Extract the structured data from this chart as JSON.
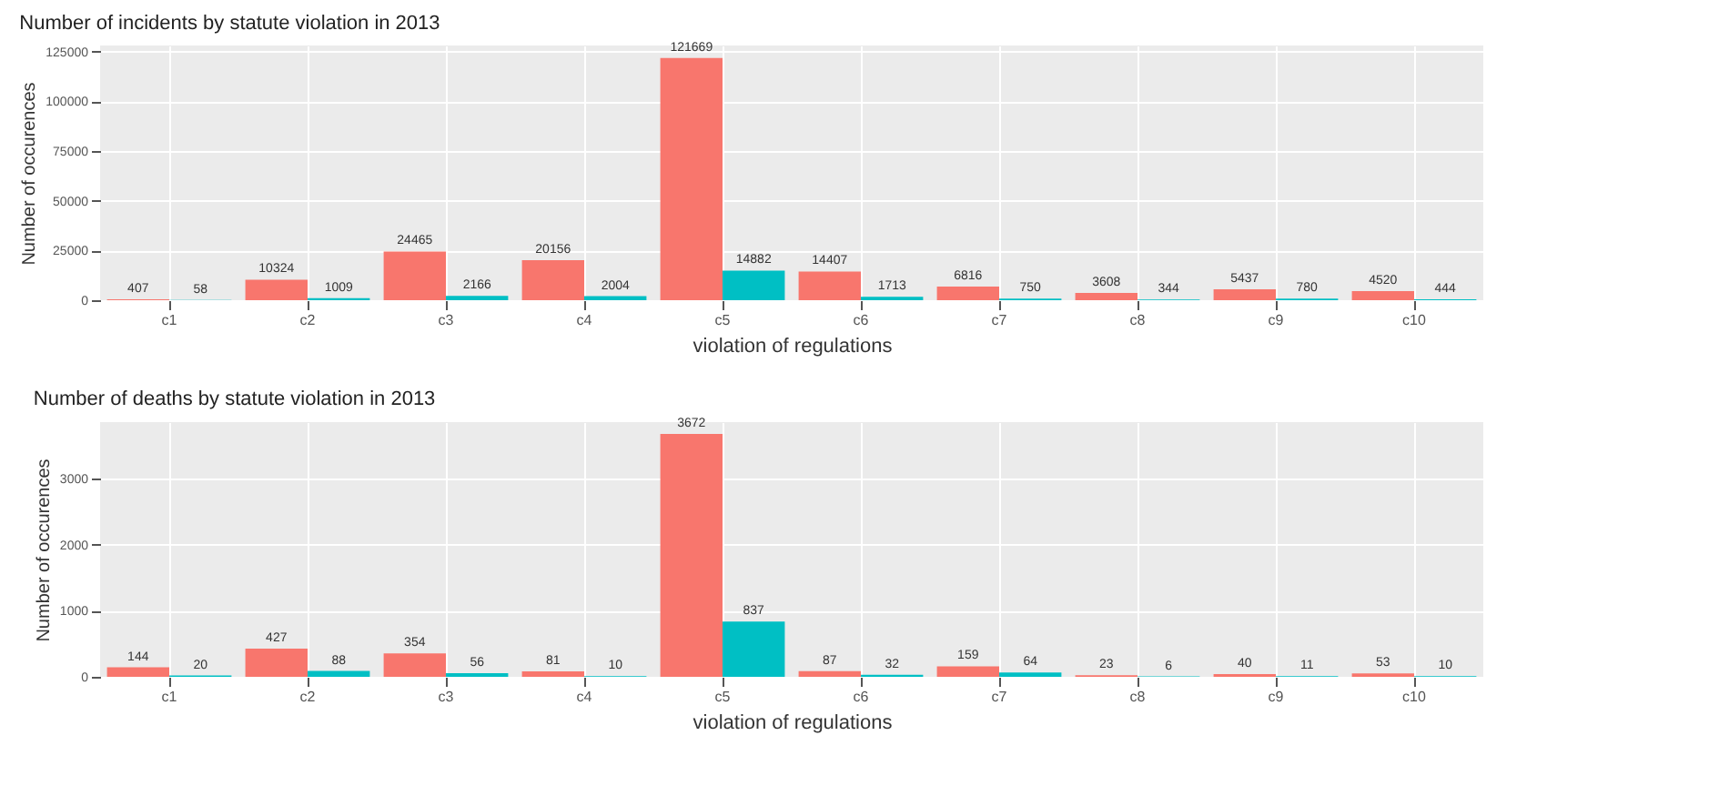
{
  "chart_data": [
    {
      "type": "bar",
      "title": "Number of incidents by statute violation in 2013",
      "xlabel": "violation of regulations",
      "ylabel": "Number of occurences",
      "categories": [
        "c1",
        "c2",
        "c3",
        "c4",
        "c5",
        "c6",
        "c7",
        "c8",
        "c9",
        "c10"
      ],
      "series": [
        {
          "color": "#f8766d",
          "values": [
            407,
            10324,
            24465,
            20156,
            121669,
            14407,
            6816,
            3608,
            5437,
            4520
          ]
        },
        {
          "color": "#00bfc4",
          "values": [
            58,
            1009,
            2166,
            2004,
            14882,
            1713,
            750,
            344,
            780,
            444
          ]
        }
      ],
      "ylim": [
        0,
        128000
      ],
      "yticks": [
        0,
        25000,
        50000,
        75000,
        100000,
        125000
      ],
      "grid": true,
      "data_labels": true
    },
    {
      "type": "bar",
      "title": "Number of  deaths by statute violation in 2013",
      "xlabel": "violation of regulations",
      "ylabel": "Number of occurences",
      "categories": [
        "c1",
        "c2",
        "c3",
        "c4",
        "c5",
        "c6",
        "c7",
        "c8",
        "c9",
        "c10"
      ],
      "series": [
        {
          "color": "#f8766d",
          "values": [
            144,
            427,
            354,
            81,
            3672,
            87,
            159,
            23,
            40,
            53
          ]
        },
        {
          "color": "#00bfc4",
          "values": [
            20,
            88,
            56,
            10,
            837,
            32,
            64,
            6,
            11,
            10
          ]
        }
      ],
      "ylim": [
        0,
        3850
      ],
      "yticks": [
        0,
        1000,
        2000,
        3000
      ],
      "grid": true,
      "data_labels": true
    }
  ]
}
